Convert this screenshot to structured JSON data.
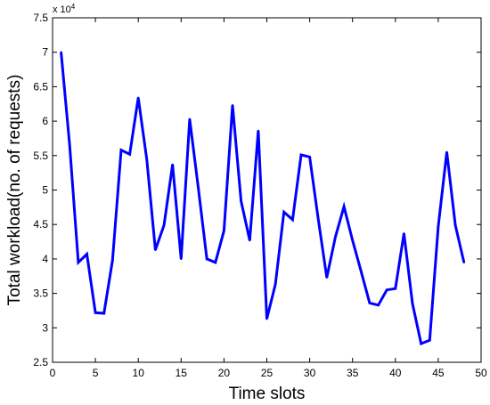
{
  "chart_data": {
    "type": "line",
    "xlabel": "Time slots",
    "ylabel": "Total workload(no. of requests)",
    "y_multiplier": {
      "base": "x 10",
      "exponent": "4"
    },
    "xlim": [
      0,
      50
    ],
    "ylim": [
      2.5,
      7.5
    ],
    "xticks": [
      0,
      5,
      10,
      15,
      20,
      25,
      30,
      35,
      40,
      45,
      50
    ],
    "xtick_labels": [
      "0",
      "5",
      "10",
      "15",
      "20",
      "25",
      "30",
      "35",
      "40",
      "45",
      "50"
    ],
    "yticks": [
      2.5,
      3,
      3.5,
      4,
      4.5,
      5,
      5.5,
      6,
      6.5,
      7,
      7.5
    ],
    "ytick_labels": [
      "2.5",
      "3",
      "3.5",
      "4",
      "4.5",
      "5",
      "5.5",
      "6",
      "6.5",
      "7",
      "7.5"
    ],
    "grid": false,
    "series": [
      {
        "color": "#0000ff",
        "x": [
          1,
          2,
          3,
          4,
          5,
          6,
          7,
          8,
          9,
          10,
          11,
          12,
          13,
          14,
          15,
          16,
          17,
          18,
          19,
          20,
          21,
          22,
          23,
          24,
          25,
          26,
          27,
          28,
          29,
          30,
          31,
          32,
          33,
          34,
          35,
          36,
          37,
          38,
          39,
          40,
          41,
          42,
          43,
          44,
          45,
          46,
          47,
          48
        ],
        "y": [
          7.0,
          5.65,
          3.95,
          4.07,
          3.22,
          3.21,
          3.98,
          5.58,
          5.52,
          6.34,
          5.44,
          4.13,
          4.49,
          5.37,
          4.0,
          6.03,
          5.04,
          4.0,
          3.95,
          4.41,
          6.23,
          4.84,
          4.27,
          5.86,
          3.13,
          3.63,
          4.68,
          4.57,
          5.51,
          5.48,
          4.58,
          3.73,
          4.32,
          4.76,
          4.27,
          3.82,
          3.36,
          3.33,
          3.55,
          3.57,
          4.37,
          3.35,
          2.77,
          2.82,
          4.47,
          5.55,
          4.49,
          3.95
        ]
      }
    ]
  }
}
